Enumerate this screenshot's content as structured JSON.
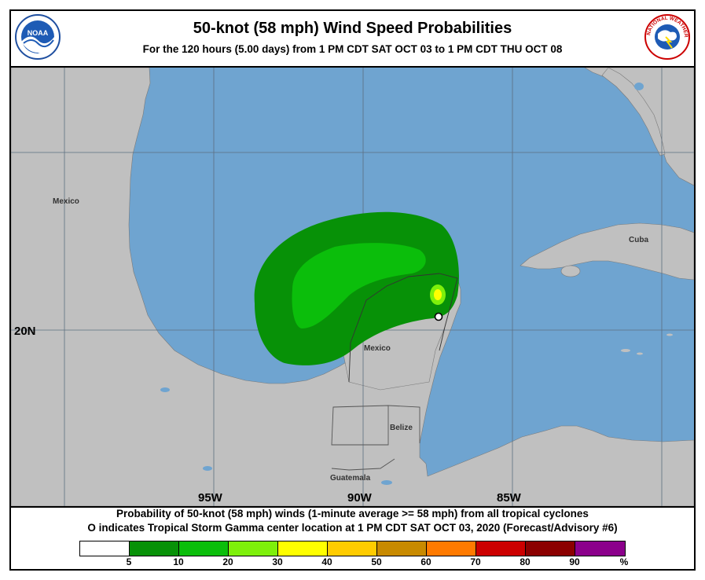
{
  "header": {
    "title": "50-knot (58 mph) Wind Speed Probabilities",
    "subtitle": "For the 120 hours (5.00 days) from 1 PM CDT SAT OCT 03 to 1 PM CDT THU OCT 08",
    "noaa_logo_text": "NOAA",
    "nws_logo_text": "NATIONAL WEATHER SERVICE"
  },
  "map": {
    "region_labels": {
      "mexico_west": "Mexico",
      "mexico_yucatan": "Mexico",
      "cuba": "Cuba",
      "belize": "Belize",
      "guatemala": "Guatemala"
    },
    "axis_labels": {
      "lon_95": "95W",
      "lon_90": "90W",
      "lon_85": "85W",
      "lat_20": "20N"
    },
    "colors": {
      "ocean": "#6fa4d0",
      "land": "#c0c0c0",
      "graticule": "#5c6f80"
    },
    "storm_marker": "Tropical Storm Gamma center",
    "probability_contours": [
      {
        "min_pct": 5,
        "color": "#079107"
      },
      {
        "min_pct": 10,
        "color": "#0bbe0b"
      },
      {
        "min_pct": 20,
        "color": "#7ef00b"
      },
      {
        "min_pct": 30,
        "color": "#ffff00"
      }
    ]
  },
  "caption": {
    "line1": "Probability of 50-knot (58 mph) winds (1-minute average >= 58 mph) from all tropical cyclones",
    "line2": "O indicates Tropical Storm Gamma center location at 1 PM CDT SAT OCT 03, 2020 (Forecast/Advisory #6)"
  },
  "legend": {
    "colors": [
      "#ffffff",
      "#079107",
      "#0bbe0b",
      "#7ef00b",
      "#ffff00",
      "#ffcc00",
      "#c88a00",
      "#ff7a00",
      "#cc0000",
      "#8b0000",
      "#8b008b"
    ],
    "labels": [
      "5",
      "10",
      "20",
      "30",
      "40",
      "50",
      "60",
      "70",
      "80",
      "90",
      "%"
    ]
  }
}
